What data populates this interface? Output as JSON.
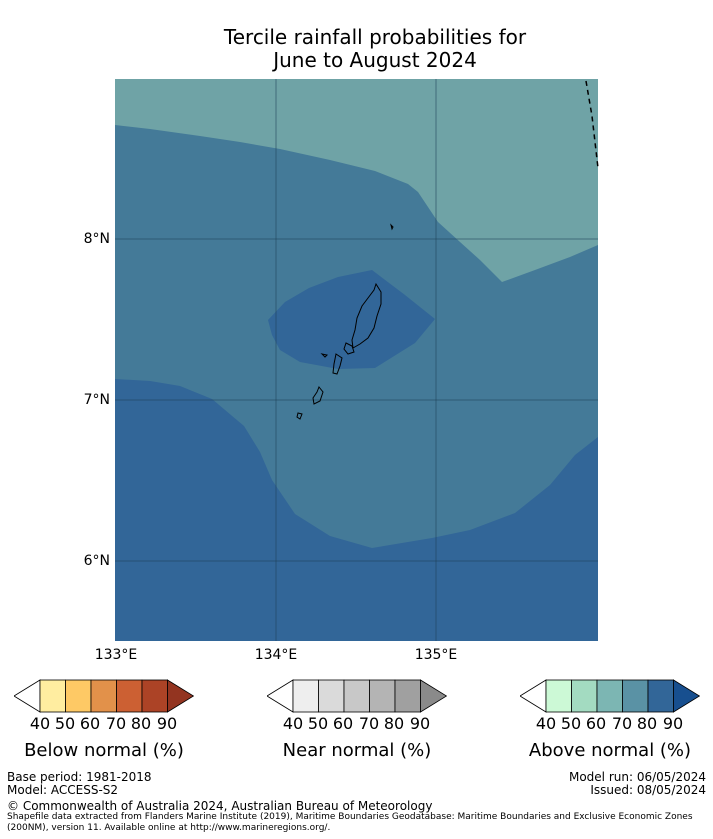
{
  "title": {
    "line1": "Tercile rainfall probabilities for",
    "line2": "June to August 2024"
  },
  "map": {
    "lat_labels": [
      "8°N",
      "7°N",
      "6°N"
    ],
    "lon_labels": [
      "133°E",
      "134°E",
      "135°E"
    ],
    "colors": {
      "above_70": "#6fa3a6",
      "above_80": "#447a98",
      "above_90": "#326698"
    }
  },
  "legends": [
    {
      "title": "Below normal (%)",
      "ticks": [
        "40",
        "50",
        "60",
        "70",
        "80",
        "90"
      ],
      "colors": [
        "#ffffff",
        "#ffeda0",
        "#fec965",
        "#e2914a",
        "#cc6033",
        "#ac4326",
        "#933420"
      ]
    },
    {
      "title": "Near normal (%)",
      "ticks": [
        "40",
        "50",
        "60",
        "70",
        "80",
        "90"
      ],
      "colors": [
        "#ffffff",
        "#eeeeee",
        "#dadada",
        "#c8c8c8",
        "#b4b4b4",
        "#a0a0a0",
        "#8a8a8a"
      ]
    },
    {
      "title": "Above normal (%)",
      "ticks": [
        "40",
        "50",
        "60",
        "70",
        "80",
        "90"
      ],
      "colors": [
        "#ffffff",
        "#ccf9d6",
        "#a3dbc1",
        "#7cb6b3",
        "#5a92a5",
        "#326698",
        "#174f8f"
      ]
    }
  ],
  "footer": {
    "base_period": "Base period: 1981-2018",
    "model": "Model: ACCESS-S2",
    "model_run": "Model run: 06/05/2024",
    "issued": "Issued: 08/05/2024",
    "copyright": "© Commonwealth of Australia 2024, Australian Bureau of Meteorology",
    "source_line1": "Shapefile data extracted from Flanders Marine Institute (2019), Maritime Boundaries Geodatabase: Maritime Boundaries and Exclusive Economic Zones",
    "source_line2": "(200NM), version 11. Available online at http://www.marineregions.org/."
  }
}
